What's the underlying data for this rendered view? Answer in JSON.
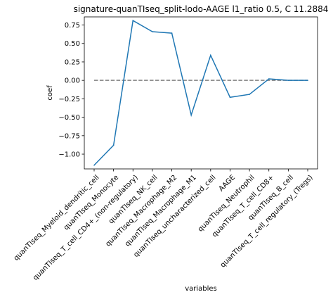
{
  "chart_data": {
    "type": "line",
    "title": "signature-quanTIseq_split-lodo-AAGE l1_ratio 0.5, C 11.2884",
    "xlabel": "variables",
    "ylabel": "coef",
    "categories": [
      "quanTIseq_Myeloid_dendritic_cell",
      "quanTIseq_Monocyte",
      "quanTIseq_T_cell_CD4+_(non-regulatory)",
      "quanTIseq_NK_cell",
      "quanTIseq_Macrophage_M2",
      "quanTIseq_Macrophage_M1",
      "quanTIseq_uncharacterized_cell",
      "AAGE",
      "quanTIseq_Neutrophil",
      "quanTIseq_T_cell_CD8+",
      "quanTIseq_B_cell",
      "quanTIseq_T_cell_regulatory_(Tregs)"
    ],
    "series": [
      {
        "values": [
          -1.15,
          -0.88,
          0.81,
          0.66,
          0.64,
          -0.47,
          0.34,
          -0.23,
          -0.19,
          0.02,
          0.0,
          0.0
        ],
        "color": "#1f77b4"
      }
    ],
    "reference_line": {
      "y": 0,
      "style": "dashed",
      "color": "#808080"
    },
    "yticks": [
      0.75,
      0.5,
      0.25,
      0.0,
      -0.25,
      -0.5,
      -0.75,
      -1.0
    ],
    "ytick_labels": [
      "0.75",
      "0.50",
      "0.25",
      "0.00",
      "−0.25",
      "−0.50",
      "−0.75",
      "−1.00"
    ],
    "ylim": [
      -1.2,
      0.86
    ],
    "grid": false,
    "legend": false
  }
}
